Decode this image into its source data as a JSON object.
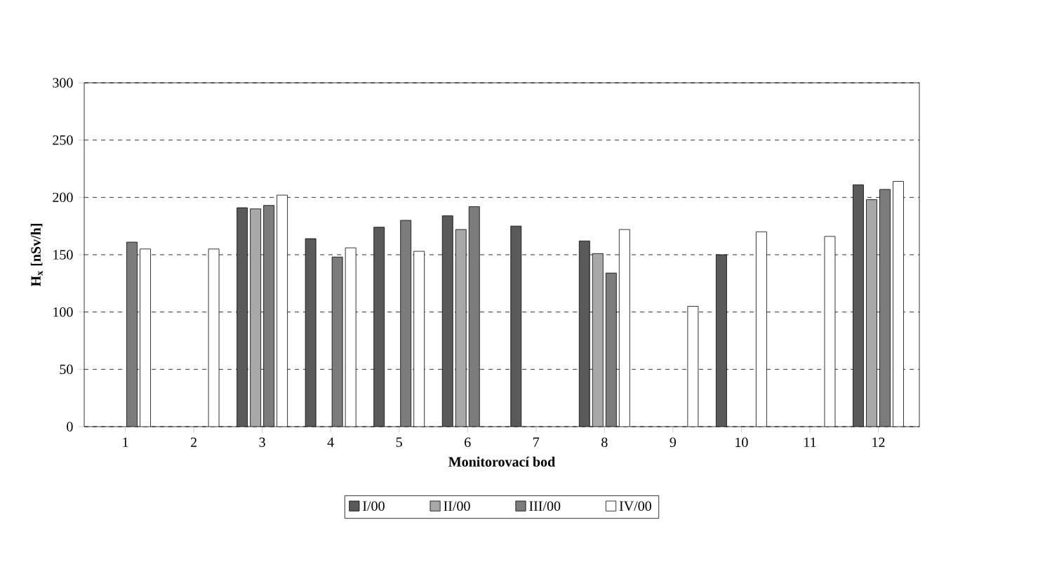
{
  "chart_data": {
    "type": "bar",
    "xlabel": "Monitorovací bod",
    "ylabel": "H$_{x}$ [nSv/h]",
    "categories": [
      "1",
      "2",
      "3",
      "4",
      "5",
      "6",
      "7",
      "8",
      "9",
      "10",
      "11",
      "12"
    ],
    "series": [
      {
        "name": "I/00",
        "color": "#5a5a5a",
        "values": [
          null,
          null,
          191,
          164,
          174,
          184,
          175,
          162,
          null,
          150,
          null,
          211
        ]
      },
      {
        "name": "II/00",
        "color": "#a8a8a8",
        "values": [
          null,
          null,
          190,
          null,
          null,
          172,
          null,
          151,
          null,
          null,
          null,
          198
        ]
      },
      {
        "name": "III/00",
        "color": "#7c7c7c",
        "values": [
          161,
          null,
          193,
          148,
          180,
          192,
          null,
          134,
          null,
          null,
          null,
          207
        ]
      },
      {
        "name": "IV/00",
        "color": "#ffffff",
        "values": [
          155,
          155,
          202,
          156,
          153,
          null,
          null,
          172,
          105,
          170,
          166,
          214
        ]
      }
    ],
    "ylim": [
      0,
      300
    ],
    "yticks": [
      0,
      50,
      100,
      150,
      200,
      250,
      300
    ],
    "grid": "y",
    "legend": "bottom"
  }
}
